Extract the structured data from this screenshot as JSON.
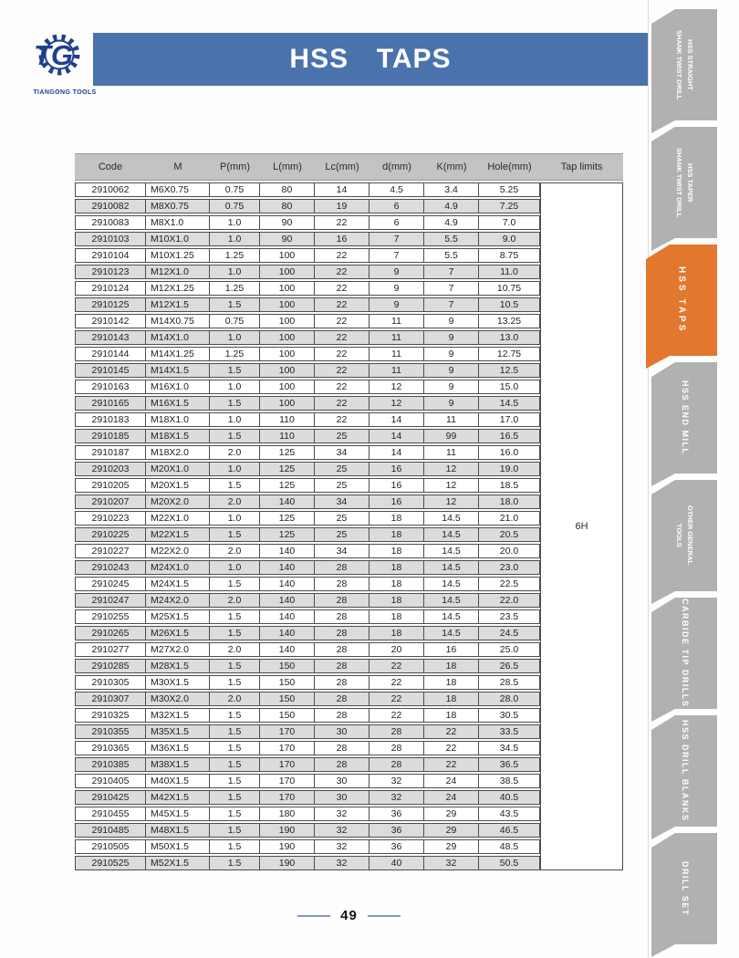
{
  "header": {
    "title": "HSS  TAPS",
    "logo": {
      "monogram": "TG",
      "company": "TIANGONG TOOLS"
    }
  },
  "table": {
    "columns": [
      "Code",
      "M",
      "P(mm)",
      "L(mm)",
      "Lc(mm)",
      "d(mm)",
      "K(mm)",
      "Hole(mm)",
      "Tap limits"
    ],
    "tap_limits": "6H",
    "rows": [
      [
        "2910062",
        "M6X0.75",
        "0.75",
        "80",
        "14",
        "4.5",
        "3.4",
        "5.25"
      ],
      [
        "2910082",
        "M8X0.75",
        "0.75",
        "80",
        "19",
        "6",
        "4.9",
        "7.25"
      ],
      [
        "2910083",
        "M8X1.0",
        "1.0",
        "90",
        "22",
        "6",
        "4.9",
        "7.0"
      ],
      [
        "2910103",
        "M10X1.0",
        "1.0",
        "90",
        "16",
        "7",
        "5.5",
        "9.0"
      ],
      [
        "2910104",
        "M10X1.25",
        "1.25",
        "100",
        "22",
        "7",
        "5.5",
        "8.75"
      ],
      [
        "2910123",
        "M12X1.0",
        "1.0",
        "100",
        "22",
        "9",
        "7",
        "11.0"
      ],
      [
        "2910124",
        "M12X1.25",
        "1.25",
        "100",
        "22",
        "9",
        "7",
        "10.75"
      ],
      [
        "2910125",
        "M12X1.5",
        "1.5",
        "100",
        "22",
        "9",
        "7",
        "10.5"
      ],
      [
        "2910142",
        "M14X0.75",
        "0.75",
        "100",
        "22",
        "11",
        "9",
        "13.25"
      ],
      [
        "2910143",
        "M14X1.0",
        "1.0",
        "100",
        "22",
        "11",
        "9",
        "13.0"
      ],
      [
        "2910144",
        "M14X1.25",
        "1.25",
        "100",
        "22",
        "11",
        "9",
        "12.75"
      ],
      [
        "2910145",
        "M14X1.5",
        "1.5",
        "100",
        "22",
        "11",
        "9",
        "12.5"
      ],
      [
        "2910163",
        "M16X1.0",
        "1.0",
        "100",
        "22",
        "12",
        "9",
        "15.0"
      ],
      [
        "2910165",
        "M16X1.5",
        "1.5",
        "100",
        "22",
        "12",
        "9",
        "14.5"
      ],
      [
        "2910183",
        "M18X1.0",
        "1.0",
        "110",
        "22",
        "14",
        "11",
        "17.0"
      ],
      [
        "2910185",
        "M18X1.5",
        "1.5",
        "110",
        "25",
        "14",
        "99",
        "16.5"
      ],
      [
        "2910187",
        "M18X2.0",
        "2.0",
        "125",
        "34",
        "14",
        "11",
        "16.0"
      ],
      [
        "2910203",
        "M20X1.0",
        "1.0",
        "125",
        "25",
        "16",
        "12",
        "19.0"
      ],
      [
        "2910205",
        "M20X1.5",
        "1.5",
        "125",
        "25",
        "16",
        "12",
        "18.5"
      ],
      [
        "2910207",
        "M20X2.0",
        "2.0",
        "140",
        "34",
        "16",
        "12",
        "18.0"
      ],
      [
        "2910223",
        "M22X1.0",
        "1.0",
        "125",
        "25",
        "18",
        "14.5",
        "21.0"
      ],
      [
        "2910225",
        "M22X1.5",
        "1.5",
        "125",
        "25",
        "18",
        "14.5",
        "20.5"
      ],
      [
        "2910227",
        "M22X2.0",
        "2.0",
        "140",
        "34",
        "18",
        "14.5",
        "20.0"
      ],
      [
        "2910243",
        "M24X1.0",
        "1.0",
        "140",
        "28",
        "18",
        "14.5",
        "23.0"
      ],
      [
        "2910245",
        "M24X1.5",
        "1.5",
        "140",
        "28",
        "18",
        "14.5",
        "22.5"
      ],
      [
        "2910247",
        "M24X2.0",
        "2.0",
        "140",
        "28",
        "18",
        "14.5",
        "22.0"
      ],
      [
        "2910255",
        "M25X1.5",
        "1.5",
        "140",
        "28",
        "18",
        "14.5",
        "23.5"
      ],
      [
        "2910265",
        "M26X1.5",
        "1.5",
        "140",
        "28",
        "18",
        "14.5",
        "24.5"
      ],
      [
        "2910277",
        "M27X2.0",
        "2.0",
        "140",
        "28",
        "20",
        "16",
        "25.0"
      ],
      [
        "2910285",
        "M28X1.5",
        "1.5",
        "150",
        "28",
        "22",
        "18",
        "26.5"
      ],
      [
        "2910305",
        "M30X1.5",
        "1.5",
        "150",
        "28",
        "22",
        "18",
        "28.5"
      ],
      [
        "2910307",
        "M30X2.0",
        "2.0",
        "150",
        "28",
        "22",
        "18",
        "28.0"
      ],
      [
        "2910325",
        "M32X1.5",
        "1.5",
        "150",
        "28",
        "22",
        "18",
        "30.5"
      ],
      [
        "2910355",
        "M35X1.5",
        "1.5",
        "170",
        "30",
        "28",
        "22",
        "33.5"
      ],
      [
        "2910365",
        "M36X1.5",
        "1.5",
        "170",
        "28",
        "28",
        "22",
        "34.5"
      ],
      [
        "2910385",
        "M38X1.5",
        "1.5",
        "170",
        "28",
        "28",
        "22",
        "36.5"
      ],
      [
        "2910405",
        "M40X1.5",
        "1.5",
        "170",
        "30",
        "32",
        "24",
        "38.5"
      ],
      [
        "2910425",
        "M42X1.5",
        "1.5",
        "170",
        "30",
        "32",
        "24",
        "40.5"
      ],
      [
        "2910455",
        "M45X1.5",
        "1.5",
        "180",
        "32",
        "36",
        "29",
        "43.5"
      ],
      [
        "2910485",
        "M48X1.5",
        "1.5",
        "190",
        "32",
        "36",
        "29",
        "46.5"
      ],
      [
        "2910505",
        "M50X1.5",
        "1.5",
        "190",
        "32",
        "36",
        "29",
        "48.5"
      ],
      [
        "2910525",
        "M52X1.5",
        "1.5",
        "190",
        "32",
        "40",
        "32",
        "50.5"
      ]
    ]
  },
  "sidebar": {
    "tabs": [
      {
        "label": "HSS STRAIGHT\nSHANK TWIST DRILL",
        "active": false
      },
      {
        "label": "HSS TAPER\nSHANK TWIST DRILL",
        "active": false
      },
      {
        "label": "HSS TAPS",
        "active": true
      },
      {
        "label": "HSS END MILL",
        "active": false
      },
      {
        "label": "OTHER GENERAL\nTOOLS",
        "active": false
      },
      {
        "label": "CARBIDE TIP DRILLS",
        "active": false
      },
      {
        "label": "HSS DRILL BLANKS",
        "active": false
      },
      {
        "label": "DRILL SET",
        "active": false
      }
    ]
  },
  "footer": {
    "page_number": "49"
  },
  "colors": {
    "title_bar_blue": "#4a72ad",
    "logo_navy": "#1f3f8f",
    "tab_gray": "#b1b1b3",
    "tab_active_orange": "#e2772e",
    "table_header_gray": "#c3c3c3",
    "row_stripe_gray": "#dcdcdc",
    "table_border": "#4d4d4d",
    "footer_dash_blue": "#8595c8"
  }
}
